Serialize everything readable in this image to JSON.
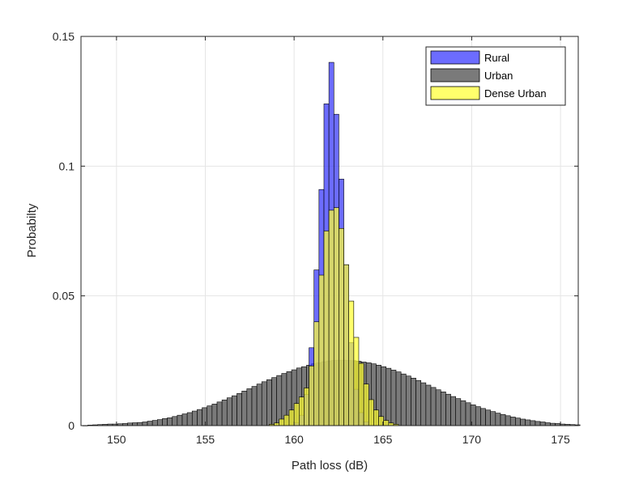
{
  "chart_data": {
    "type": "bar",
    "xlabel": "Path loss (dB)",
    "ylabel": "Probabilty",
    "xlim": [
      148,
      176
    ],
    "ylim": [
      0,
      0.15
    ],
    "xticks": [
      "150",
      "155",
      "160",
      "165",
      "170",
      "175"
    ],
    "yticks": [
      "0",
      "0.05",
      "0.1",
      "0.15"
    ],
    "grid": true,
    "legend_position": "top-right",
    "series": [
      {
        "name": "Urban",
        "color": "#595959",
        "opacity": 0.8,
        "bin_start": 148.1,
        "bin_width": 0.28,
        "values": [
          0.0,
          0.0002,
          0.0003,
          0.0004,
          0.0005,
          0.0006,
          0.0006,
          0.0007,
          0.0008,
          0.001,
          0.0011,
          0.0012,
          0.0014,
          0.0017,
          0.002,
          0.0023,
          0.0027,
          0.003,
          0.0035,
          0.004,
          0.0045,
          0.005,
          0.0056,
          0.0062,
          0.0069,
          0.0076,
          0.0083,
          0.0091,
          0.0099,
          0.0107,
          0.0115,
          0.0124,
          0.0133,
          0.0142,
          0.0151,
          0.016,
          0.0169,
          0.0177,
          0.0185,
          0.0193,
          0.0201,
          0.0208,
          0.0215,
          0.0222,
          0.0227,
          0.0233,
          0.0238,
          0.0242,
          0.0246,
          0.0249,
          0.0251,
          0.0252,
          0.0252,
          0.0251,
          0.025,
          0.0248,
          0.0245,
          0.0242,
          0.0238,
          0.0233,
          0.0227,
          0.0221,
          0.0214,
          0.0207,
          0.0199,
          0.0191,
          0.0183,
          0.0174,
          0.0165,
          0.0156,
          0.0147,
          0.0138,
          0.013,
          0.0121,
          0.0112,
          0.0104,
          0.0096,
          0.0088,
          0.008,
          0.0073,
          0.0066,
          0.006,
          0.0054,
          0.0048,
          0.0043,
          0.0038,
          0.0033,
          0.0029,
          0.0025,
          0.0022,
          0.0019,
          0.0016,
          0.0014,
          0.0011,
          0.0009,
          0.0008,
          0.0006,
          0.0005,
          0.0004,
          0.0003
        ]
      },
      {
        "name": "Rural",
        "color": "#3333ff",
        "opacity": 0.72,
        "bin_start": 160.0,
        "bin_width": 0.28,
        "values": [
          0.001,
          0.004,
          0.012,
          0.03,
          0.06,
          0.091,
          0.124,
          0.14,
          0.12,
          0.095,
          0.062,
          0.032,
          0.014,
          0.005,
          0.0015
        ]
      },
      {
        "name": "Dense Urban",
        "color": "#ffff33",
        "opacity": 0.72,
        "bin_start": 158.6,
        "bin_width": 0.28,
        "values": [
          0.0005,
          0.001,
          0.0025,
          0.004,
          0.006,
          0.0085,
          0.011,
          0.0145,
          0.023,
          0.04,
          0.058,
          0.075,
          0.083,
          0.084,
          0.076,
          0.062,
          0.048,
          0.034,
          0.024,
          0.016,
          0.01,
          0.006,
          0.0035,
          0.002,
          0.001,
          0.0005
        ]
      }
    ],
    "legend_order": [
      "Rural",
      "Urban",
      "Dense Urban"
    ]
  }
}
